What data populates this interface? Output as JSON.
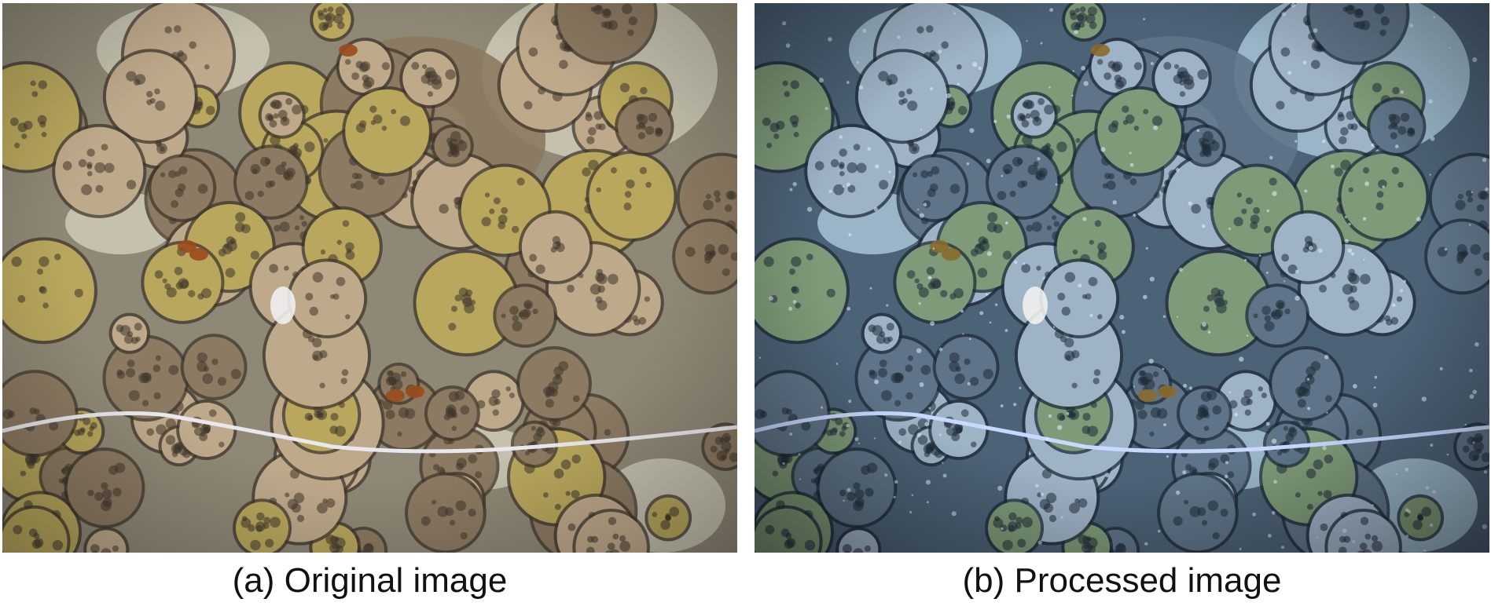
{
  "figure": {
    "panels": [
      {
        "id": "original",
        "caption": "(a) Original image",
        "palette": {
          "background": "#8f8876",
          "sand": "#cfcbb8",
          "coral_light": "#bfa98b",
          "coral_mid": "#8c7a62",
          "coral_dark": "#3f372c",
          "algae": "#b8a75c",
          "accent": "#9a4a1c",
          "tape": "#e8e8ee"
        }
      },
      {
        "id": "processed",
        "caption": "(b) Processed image",
        "palette": {
          "background": "#4c6276",
          "sand": "#a7c4d6",
          "coral_light": "#9fb3c7",
          "coral_mid": "#5f7488",
          "coral_dark": "#1f2b38",
          "algae": "#7e9a78",
          "accent": "#8a6a2c",
          "tape": "#c9d8ff"
        }
      }
    ]
  }
}
